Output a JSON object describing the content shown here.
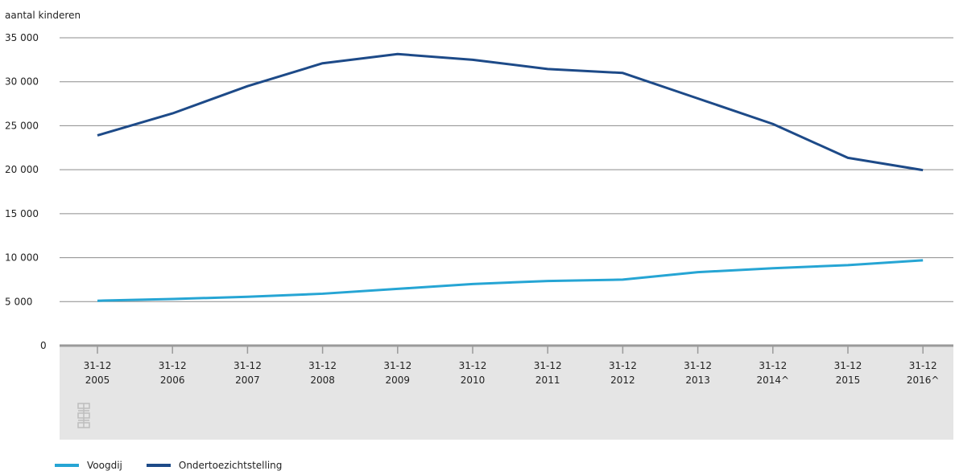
{
  "chart_data": {
    "type": "line",
    "ylabel": "aantal kinderen",
    "ylim": [
      0,
      35000
    ],
    "yticks": [
      0,
      5000,
      10000,
      15000,
      20000,
      25000,
      30000,
      35000
    ],
    "ytick_labels": [
      "0",
      "5 000",
      "10 000",
      "15 000",
      "20 000",
      "25 000",
      "30 000",
      "35 000"
    ],
    "categories": [
      [
        "31-12",
        "2005"
      ],
      [
        "31-12",
        "2006"
      ],
      [
        "31-12",
        "2007"
      ],
      [
        "31-12",
        "2008"
      ],
      [
        "31-12",
        "2009"
      ],
      [
        "31-12",
        "2010"
      ],
      [
        "31-12",
        "2011"
      ],
      [
        "31-12",
        "2012"
      ],
      [
        "31-12",
        "2013"
      ],
      [
        "31-12",
        "2014^"
      ],
      [
        "31-12",
        "2015"
      ],
      [
        "31-12",
        "2016^"
      ]
    ],
    "grid": "horizontal",
    "legend_position": "bottom-left",
    "series": [
      {
        "name": "Voogdij",
        "color": "#26a5d4",
        "values": [
          5100,
          5300,
          5550,
          5900,
          6450,
          7000,
          7350,
          7500,
          8350,
          8800,
          9150,
          9700
        ]
      },
      {
        "name": "Ondertoezichtstelling",
        "color": "#1d4a88",
        "values": [
          23900,
          26400,
          29500,
          32100,
          33150,
          32500,
          31450,
          31000,
          28100,
          25200,
          21350,
          19950
        ]
      }
    ]
  },
  "logo_icon": "cbs-logo-icon"
}
